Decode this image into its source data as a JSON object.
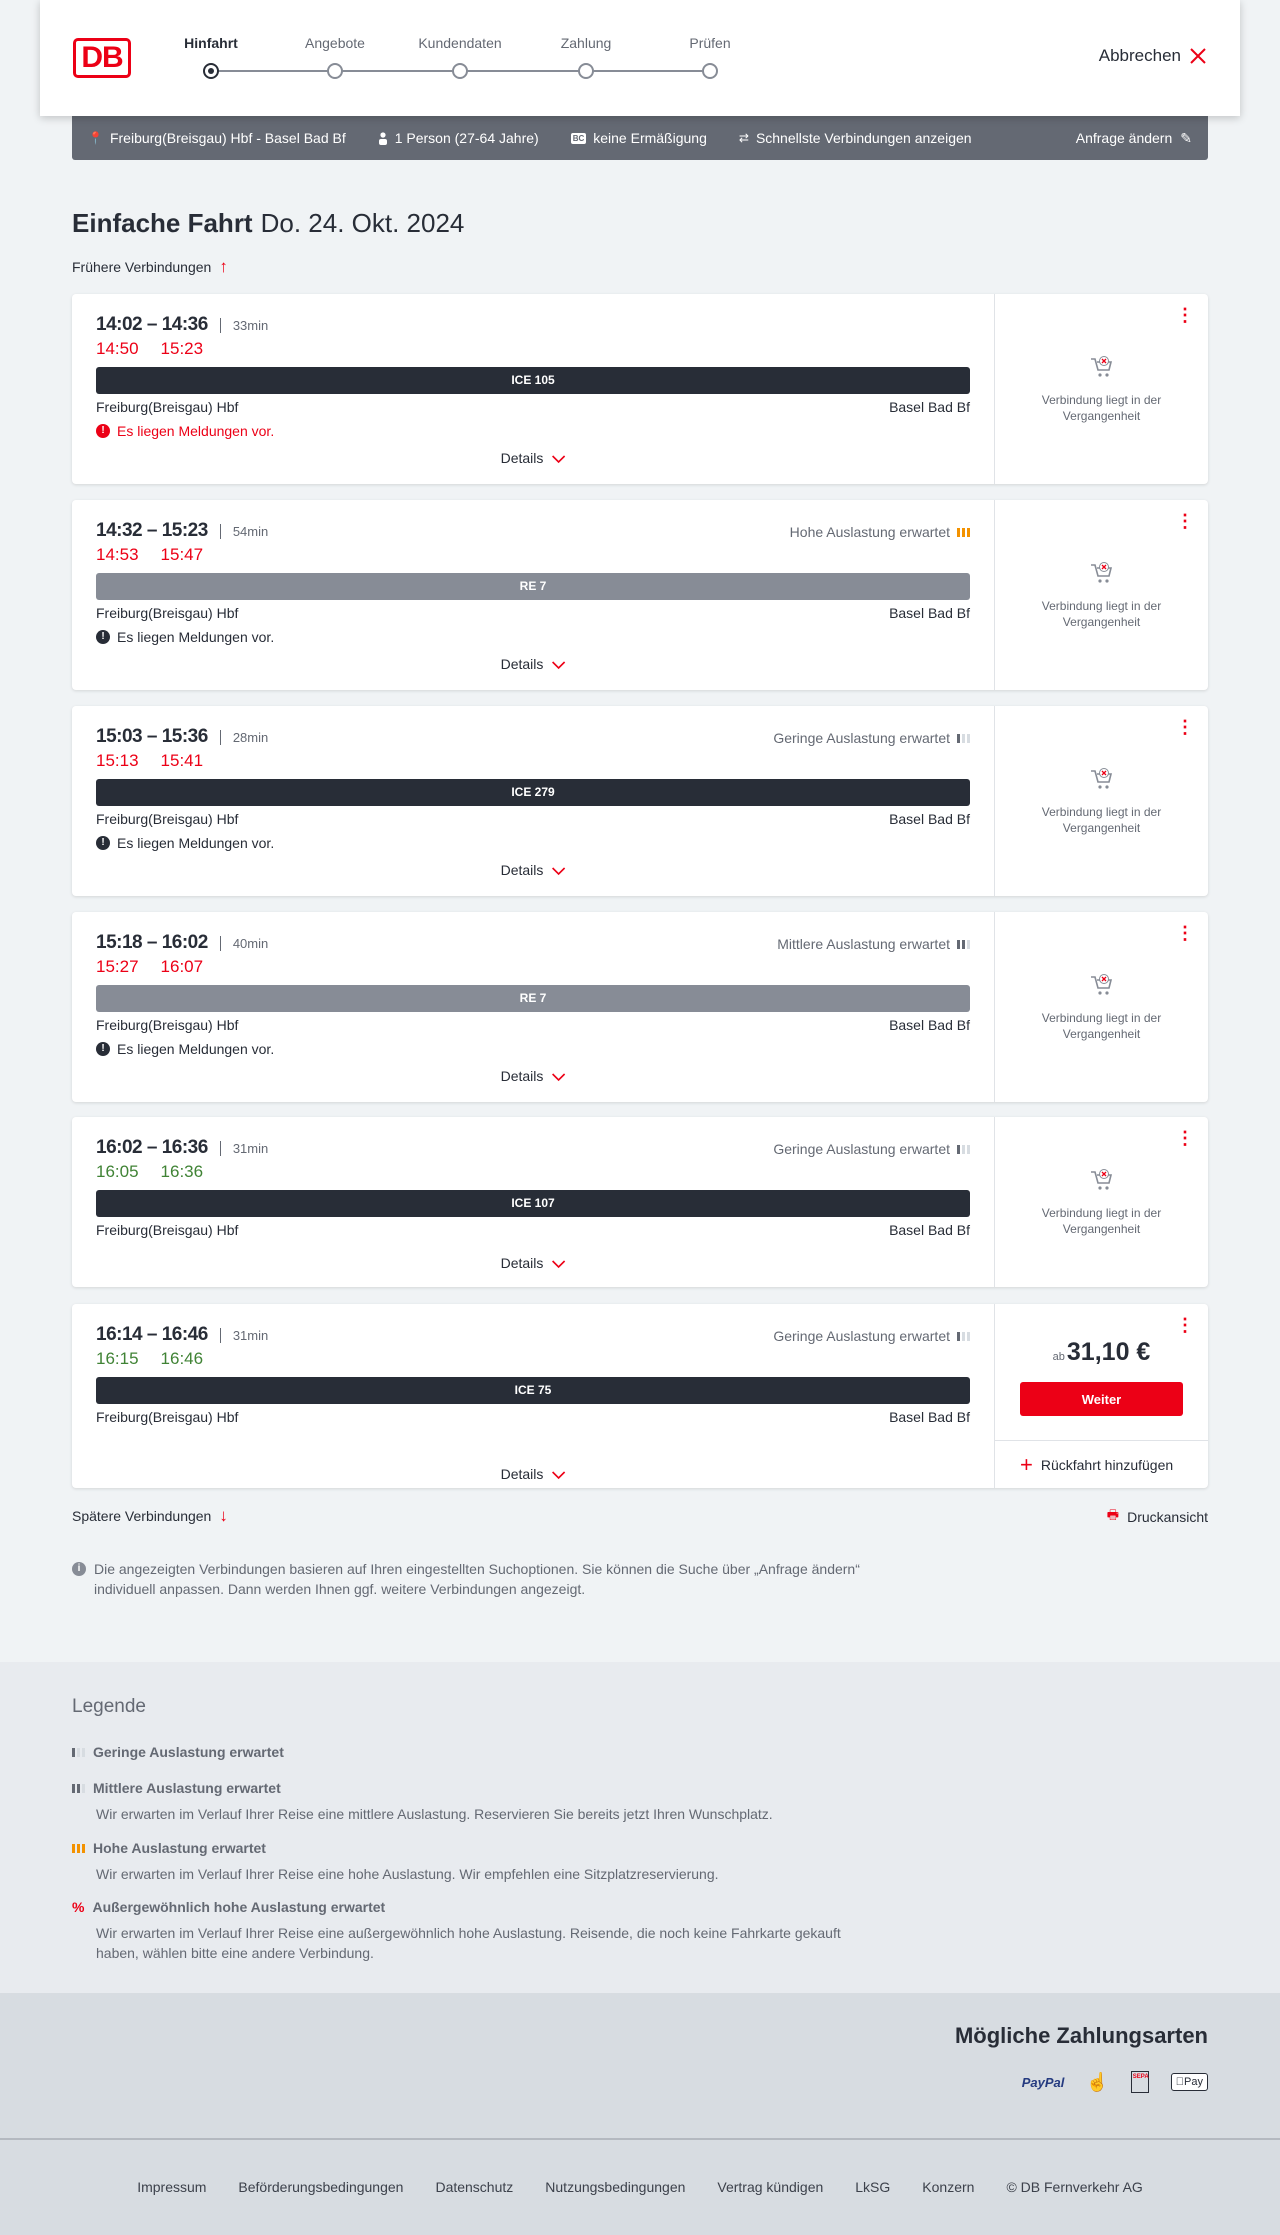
{
  "header": {
    "logo": "DB",
    "steps": [
      "Hinfahrt",
      "Angebote",
      "Kundendaten",
      "Zahlung",
      "Prüfen"
    ],
    "active_step": 0,
    "cancel": "Abbrechen"
  },
  "infobar": {
    "route": "Freiburg(Breisgau) Hbf - Basel Bad Bf",
    "travellers": "1 Person (27-64 Jahre)",
    "discount_badge": "BC",
    "discount": "keine Ermäßigung",
    "fastest": "Schnellste Verbindungen anzeigen",
    "change": "Anfrage ändern"
  },
  "main": {
    "title": "Einfache Fahrt",
    "date": "Do. 24. Okt. 2024",
    "earlier": "Frühere Verbindungen",
    "later": "Spätere Verbindungen",
    "print": "Druckansicht",
    "note": "Die angezeigten Verbindungen basieren auf Ihren eingestellten Suchoptionen. Sie können die Suche über „Anfrage ändern“ individuell anpassen. Dann werden Ihnen ggf. weitere Verbindungen angezeigt."
  },
  "connections": [
    {
      "times": "14:02 – 14:36",
      "duration": "33min",
      "rt_dep": "14:50",
      "rt_arr": "15:23",
      "rt_status": "late",
      "load": "",
      "load_level": 0,
      "train": "ICE 105",
      "train_type": "ice",
      "from": "Freiburg(Breisgau) Hbf",
      "to": "Basel Bad Bf",
      "message": "Es liegen Meldungen vor.",
      "message_style": "red",
      "details": "Details",
      "past": "Verbindung liegt in der Vergangenheit"
    },
    {
      "times": "14:32 – 15:23",
      "duration": "54min",
      "rt_dep": "14:53",
      "rt_arr": "15:47",
      "rt_status": "late",
      "load": "Hohe Auslastung erwartet",
      "load_level": 3,
      "train": "RE 7",
      "train_type": "re",
      "from": "Freiburg(Breisgau) Hbf",
      "to": "Basel Bad Bf",
      "message": "Es liegen Meldungen vor.",
      "message_style": "blk",
      "details": "Details",
      "past": "Verbindung liegt in der Vergangenheit"
    },
    {
      "times": "15:03 – 15:36",
      "duration": "28min",
      "rt_dep": "15:13",
      "rt_arr": "15:41",
      "rt_status": "late",
      "load": "Geringe Auslastung erwartet",
      "load_level": 1,
      "train": "ICE 279",
      "train_type": "ice",
      "from": "Freiburg(Breisgau) Hbf",
      "to": "Basel Bad Bf",
      "message": "Es liegen Meldungen vor.",
      "message_style": "blk",
      "details": "Details",
      "past": "Verbindung liegt in der Vergangenheit"
    },
    {
      "times": "15:18 – 16:02",
      "duration": "40min",
      "rt_dep": "15:27",
      "rt_arr": "16:07",
      "rt_status": "late",
      "load": "Mittlere Auslastung erwartet",
      "load_level": 2,
      "train": "RE 7",
      "train_type": "re",
      "from": "Freiburg(Breisgau) Hbf",
      "to": "Basel Bad Bf",
      "message": "Es liegen Meldungen vor.",
      "message_style": "blk",
      "details": "Details",
      "past": "Verbindung liegt in der Vergangenheit"
    },
    {
      "times": "16:02 – 16:36",
      "duration": "31min",
      "rt_dep": "16:05",
      "rt_arr": "16:36",
      "rt_status": "ok",
      "load": "Geringe Auslastung erwartet",
      "load_level": 1,
      "train": "ICE 107",
      "train_type": "ice",
      "from": "Freiburg(Breisgau) Hbf",
      "to": "Basel Bad Bf",
      "message": "",
      "details": "Details",
      "past": "Verbindung liegt in der Vergangenheit"
    },
    {
      "times": "16:14 – 16:46",
      "duration": "31min",
      "rt_dep": "16:15",
      "rt_arr": "16:46",
      "rt_status": "ok",
      "load": "Geringe Auslastung erwartet",
      "load_level": 1,
      "train": "ICE 75",
      "train_type": "ice",
      "from": "Freiburg(Breisgau) Hbf",
      "to": "Basel Bad Bf",
      "message": "",
      "details": "Details",
      "price_prefix": "ab",
      "price": "31,10 €",
      "button": "Weiter",
      "return": "Rückfahrt hinzufügen"
    }
  ],
  "legend": {
    "title": "Legende",
    "items": [
      {
        "title": "Geringe Auslastung erwartet",
        "text": ""
      },
      {
        "title": "Mittlere Auslastung erwartet",
        "text": "Wir erwarten im Verlauf Ihrer Reise eine mittlere Auslastung. Reservieren Sie bereits jetzt Ihren Wunschplatz."
      },
      {
        "title": "Hohe Auslastung erwartet",
        "text": "Wir erwarten im Verlauf Ihrer Reise eine hohe Auslastung. Wir empfehlen eine Sitzplatzreservierung."
      },
      {
        "title": "Außergewöhnlich hohe Auslastung erwartet",
        "text": "Wir erwarten im Verlauf Ihrer Reise eine außergewöhnlich hohe Auslastung. Reisende, die noch keine Fahrkarte gekauft haben, wählen bitte eine andere Verbindung."
      }
    ]
  },
  "footer": {
    "payment_title": "Mögliche Zahlungsarten",
    "payment_methods": [
      "PayPal",
      "Kreditkarte",
      "SEPA",
      "Pay"
    ],
    "links": [
      "Impressum",
      "Beförderungsbedingungen",
      "Datenschutz",
      "Nutzungsbedingungen",
      "Vertrag kündigen",
      "LkSG",
      "Konzern",
      "© DB Fernverkehr AG"
    ]
  },
  "colors": {
    "brand_red": "#ec0016",
    "late": "#ec0016",
    "on_time": "#408335",
    "high_load": "#f39200",
    "ice_bar": "#282d37",
    "re_bar": "#878c96"
  }
}
